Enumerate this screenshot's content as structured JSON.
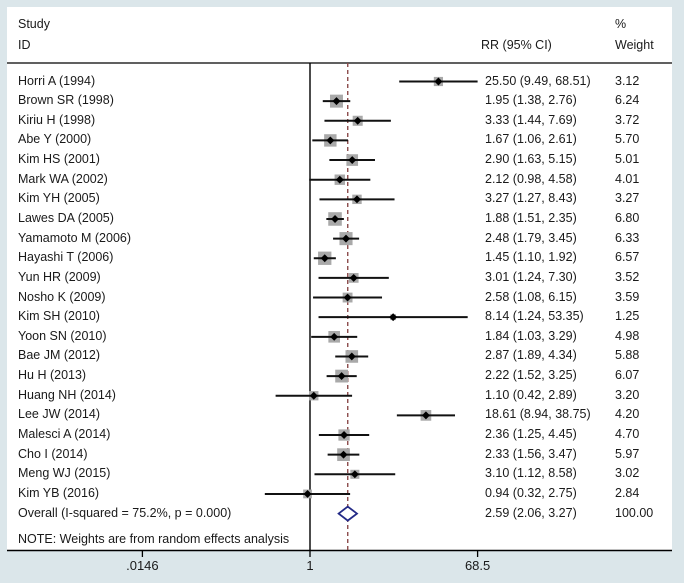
{
  "header": {
    "col_study_line1": "Study",
    "col_study_line2": "ID",
    "col_rr": "RR (95% CI)",
    "col_pct": "%",
    "col_weight": "Weight"
  },
  "note": "NOTE: Weights are from random effects analysis",
  "colors": {
    "frame_bg": "#dbe6ea",
    "plot_bg": "#ffffff",
    "text": "#1a1a1a",
    "ci_line": "#111111",
    "point_marker": "#000000",
    "weight_box": "#a9a9a9",
    "overall_diamond": "#232a87",
    "overall_dashed_line": "#8b4a4a",
    "axis_line": "#000000"
  },
  "chart_data": {
    "type": "forest",
    "x_scale": "log",
    "xlim": [
      0.0146,
      68.5
    ],
    "x_ticks": [
      {
        "label": ".0146",
        "value": 0.0146
      },
      {
        "label": "1",
        "value": 1
      },
      {
        "label": "68.5",
        "value": 68.5
      }
    ],
    "null_line": 1,
    "overall_line": 2.59,
    "heterogeneity": "I-squared = 75.2%, p = 0.000",
    "studies": [
      {
        "id": "Horri A (1994)",
        "rr": 25.5,
        "lo": 9.49,
        "hi": 68.51,
        "ci_text": "25.50 (9.49, 68.51)",
        "weight": 3.12,
        "weight_text": "3.12"
      },
      {
        "id": "Brown SR (1998)",
        "rr": 1.95,
        "lo": 1.38,
        "hi": 2.76,
        "ci_text": "1.95 (1.38, 2.76)",
        "weight": 6.24,
        "weight_text": "6.24"
      },
      {
        "id": "Kiriu H (1998)",
        "rr": 3.33,
        "lo": 1.44,
        "hi": 7.69,
        "ci_text": "3.33 (1.44, 7.69)",
        "weight": 3.72,
        "weight_text": "3.72"
      },
      {
        "id": "Abe Y (2000)",
        "rr": 1.67,
        "lo": 1.06,
        "hi": 2.61,
        "ci_text": "1.67 (1.06, 2.61)",
        "weight": 5.7,
        "weight_text": "5.70"
      },
      {
        "id": "Kim HS (2001)",
        "rr": 2.9,
        "lo": 1.63,
        "hi": 5.15,
        "ci_text": "2.90 (1.63, 5.15)",
        "weight": 5.01,
        "weight_text": "5.01"
      },
      {
        "id": "Mark WA (2002)",
        "rr": 2.12,
        "lo": 0.98,
        "hi": 4.58,
        "ci_text": "2.12 (0.98, 4.58)",
        "weight": 4.01,
        "weight_text": "4.01"
      },
      {
        "id": "Kim YH (2005)",
        "rr": 3.27,
        "lo": 1.27,
        "hi": 8.43,
        "ci_text": "3.27 (1.27, 8.43)",
        "weight": 3.27,
        "weight_text": "3.27"
      },
      {
        "id": "Lawes DA (2005)",
        "rr": 1.88,
        "lo": 1.51,
        "hi": 2.35,
        "ci_text": "1.88 (1.51, 2.35)",
        "weight": 6.8,
        "weight_text": "6.80"
      },
      {
        "id": "Yamamoto M (2006)",
        "rr": 2.48,
        "lo": 1.79,
        "hi": 3.45,
        "ci_text": "2.48 (1.79, 3.45)",
        "weight": 6.33,
        "weight_text": "6.33"
      },
      {
        "id": "Hayashi T (2006)",
        "rr": 1.45,
        "lo": 1.1,
        "hi": 1.92,
        "ci_text": "1.45 (1.10, 1.92)",
        "weight": 6.57,
        "weight_text": "6.57"
      },
      {
        "id": "Yun HR (2009)",
        "rr": 3.01,
        "lo": 1.24,
        "hi": 7.3,
        "ci_text": "3.01 (1.24, 7.30)",
        "weight": 3.52,
        "weight_text": "3.52"
      },
      {
        "id": "Nosho K (2009)",
        "rr": 2.58,
        "lo": 1.08,
        "hi": 6.15,
        "ci_text": "2.58 (1.08, 6.15)",
        "weight": 3.59,
        "weight_text": "3.59"
      },
      {
        "id": "Kim SH (2010)",
        "rr": 8.14,
        "lo": 1.24,
        "hi": 53.35,
        "ci_text": "8.14 (1.24, 53.35)",
        "weight": 1.25,
        "weight_text": "1.25"
      },
      {
        "id": "Yoon SN (2010)",
        "rr": 1.84,
        "lo": 1.03,
        "hi": 3.29,
        "ci_text": "1.84 (1.03, 3.29)",
        "weight": 4.98,
        "weight_text": "4.98"
      },
      {
        "id": "Bae JM (2012)",
        "rr": 2.87,
        "lo": 1.89,
        "hi": 4.34,
        "ci_text": "2.87 (1.89, 4.34)",
        "weight": 5.88,
        "weight_text": "5.88"
      },
      {
        "id": "Hu H (2013)",
        "rr": 2.22,
        "lo": 1.52,
        "hi": 3.25,
        "ci_text": "2.22 (1.52, 3.25)",
        "weight": 6.07,
        "weight_text": "6.07"
      },
      {
        "id": "Huang NH (2014)",
        "rr": 1.1,
        "lo": 0.42,
        "hi": 2.89,
        "ci_text": "1.10 (0.42, 2.89)",
        "weight": 3.2,
        "weight_text": "3.20"
      },
      {
        "id": "Lee JW (2014)",
        "rr": 18.61,
        "lo": 8.94,
        "hi": 38.75,
        "ci_text": "18.61 (8.94, 38.75)",
        "weight": 4.2,
        "weight_text": "4.20"
      },
      {
        "id": "Malesci A (2014)",
        "rr": 2.36,
        "lo": 1.25,
        "hi": 4.45,
        "ci_text": "2.36 (1.25, 4.45)",
        "weight": 4.7,
        "weight_text": "4.70"
      },
      {
        "id": "Cho I (2014)",
        "rr": 2.33,
        "lo": 1.56,
        "hi": 3.47,
        "ci_text": "2.33 (1.56, 3.47)",
        "weight": 5.97,
        "weight_text": "5.97"
      },
      {
        "id": "Meng WJ (2015)",
        "rr": 3.1,
        "lo": 1.12,
        "hi": 8.58,
        "ci_text": "3.10 (1.12, 8.58)",
        "weight": 3.02,
        "weight_text": "3.02"
      },
      {
        "id": "Kim YB (2016)",
        "rr": 0.94,
        "lo": 0.32,
        "hi": 2.75,
        "ci_text": "0.94 (0.32, 2.75)",
        "weight": 2.84,
        "weight_text": "2.84"
      }
    ],
    "overall": {
      "label": "Overall  (I-squared = 75.2%, p = 0.000)",
      "rr": 2.59,
      "lo": 2.06,
      "hi": 3.27,
      "ci_text": "2.59 (2.06, 3.27)",
      "weight_text": "100.00"
    }
  }
}
